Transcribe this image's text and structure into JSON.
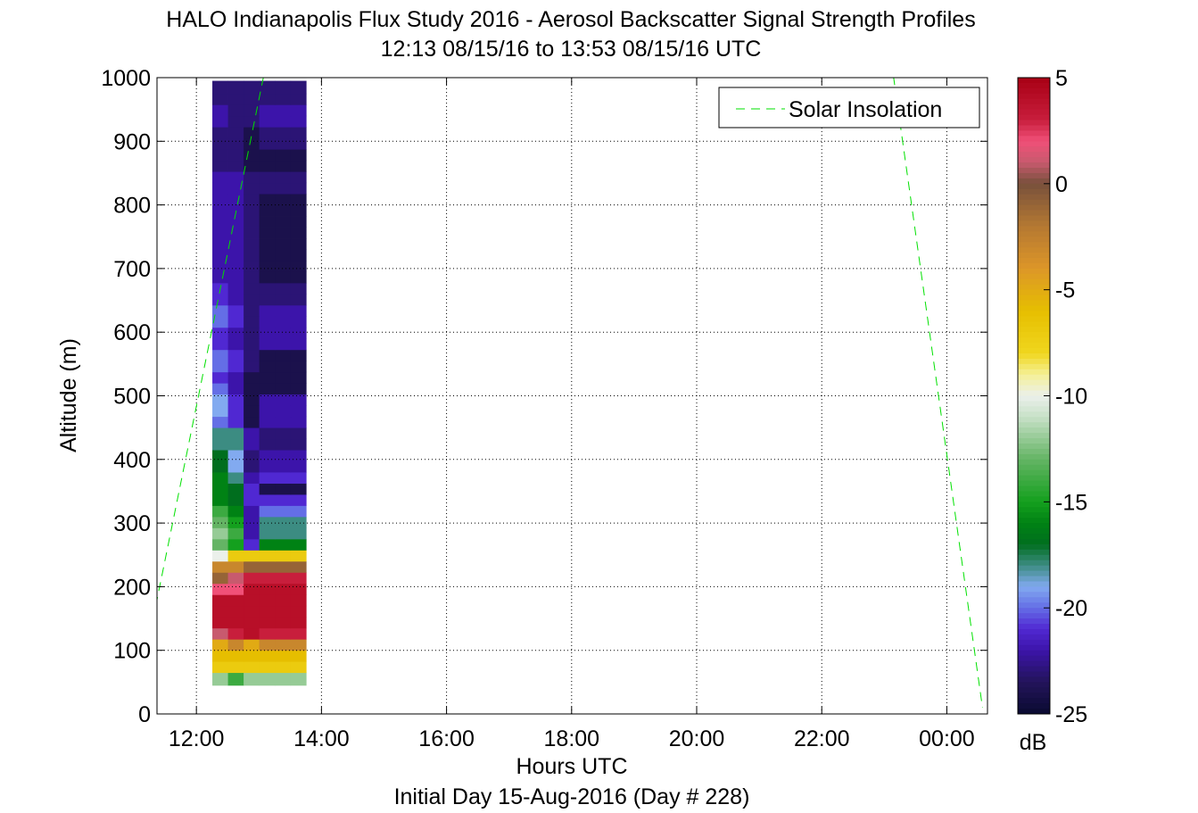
{
  "chart_data": {
    "type": "heatmap",
    "title": "HALO Indianapolis Flux Study 2016 - Aerosol Backscatter Signal Strength Profiles",
    "subtitle": "12:13 08/15/16 to 13:53 08/15/16  UTC",
    "xlabel": "Hours UTC",
    "xlabel2": "Initial Day 15-Aug-2016 (Day # 228)",
    "ylabel": "Altitude (m)",
    "colorbar_label": "dB",
    "x_ticks": [
      "12:00",
      "14:00",
      "16:00",
      "18:00",
      "20:00",
      "22:00",
      "00:00"
    ],
    "x_tick_hours": [
      12,
      14,
      16,
      18,
      20,
      22,
      24
    ],
    "xlim": [
      11.37,
      24.65
    ],
    "y_ticks": [
      "0",
      "100",
      "200",
      "300",
      "400",
      "500",
      "600",
      "700",
      "800",
      "900",
      "1000"
    ],
    "ylim": [
      0,
      1000
    ],
    "colorbar_ticks": [
      "5",
      "0",
      "-5",
      "-10",
      "-15",
      "-20",
      "-25"
    ],
    "clim": [
      -25,
      5
    ],
    "grid": true,
    "grid_style": "dotted",
    "legend": {
      "label": "Solar Insolation",
      "placement": "top-right",
      "color": "#00e000",
      "style": "dashed"
    },
    "solar_insolation_x_hours": [
      11.35,
      13.07,
      23.15,
      24.57
    ],
    "solar_insolation_altitude_m": [
      170,
      1000,
      1000,
      10
    ],
    "profile_times_hours": [
      12.38,
      12.63,
      12.88,
      13.13,
      13.38,
      13.63
    ],
    "altitude_bins_m": [
      55,
      75,
      90,
      110,
      125,
      145,
      160,
      180,
      195,
      215,
      230,
      250,
      265,
      285,
      300,
      320,
      335,
      355,
      370,
      390,
      405,
      425,
      440,
      460,
      475,
      495,
      510,
      530,
      545,
      565,
      580,
      600,
      615,
      635,
      650,
      670,
      685,
      705,
      720,
      740,
      755,
      775,
      790,
      810,
      825,
      845,
      860,
      880,
      895,
      915,
      930,
      950,
      965,
      985
    ],
    "values_db": [
      [
        -12,
        -14,
        -12,
        -12,
        -12,
        -12
      ],
      [
        -7,
        -7,
        -7,
        -7,
        -7,
        -7
      ],
      [
        -6,
        -6,
        -6,
        -6,
        -6,
        -6
      ],
      [
        -5,
        -3,
        -5,
        -3,
        -3,
        -3
      ],
      [
        1,
        3,
        4,
        3,
        3,
        3
      ],
      [
        4,
        4,
        4,
        4,
        4,
        4
      ],
      [
        4,
        4,
        4,
        4,
        4,
        4
      ],
      [
        4,
        4,
        4,
        4,
        4,
        4
      ],
      [
        2,
        2,
        4,
        4,
        4,
        4
      ],
      [
        -1,
        1,
        3,
        3,
        3,
        3
      ],
      [
        -3,
        -3,
        -1,
        -1,
        -1,
        -1
      ],
      [
        -10,
        -7,
        -7,
        -7,
        -7,
        -7
      ],
      [
        -13,
        -15,
        -21,
        -16,
        -16,
        -16
      ],
      [
        -12,
        -14,
        -22,
        -18,
        -18,
        -18
      ],
      [
        -13,
        -15,
        -22,
        -18,
        -18,
        -18
      ],
      [
        -14,
        -16,
        -22,
        -20,
        -20,
        -20
      ],
      [
        -16,
        -17,
        -21,
        -21,
        -21,
        -21
      ],
      [
        -16,
        -17,
        -21,
        -24,
        -24,
        -24
      ],
      [
        -16,
        -18,
        -22,
        -21,
        -21,
        -21
      ],
      [
        -17,
        -19,
        -23,
        -22,
        -22,
        -22
      ],
      [
        -17,
        -19,
        -23,
        -22,
        -22,
        -22
      ],
      [
        -18,
        -18,
        -22,
        -23,
        -23,
        -23
      ],
      [
        -18,
        -18,
        -22,
        -23,
        -23,
        -23
      ],
      [
        -20,
        -21,
        -24,
        -22,
        -22,
        -22
      ],
      [
        -19,
        -21,
        -24,
        -22,
        -22,
        -22
      ],
      [
        -19,
        -21,
        -24,
        -22,
        -22,
        -22
      ],
      [
        -20,
        -22,
        -24,
        -24,
        -24,
        -24
      ],
      [
        -21,
        -22,
        -24,
        -24,
        -24,
        -24
      ],
      [
        -20,
        -21,
        -23,
        -24,
        -24,
        -24
      ],
      [
        -20,
        -21,
        -23,
        -24,
        -24,
        -24
      ],
      [
        -21,
        -22,
        -23,
        -22,
        -22,
        -22
      ],
      [
        -21,
        -22,
        -23,
        -22,
        -22,
        -22
      ],
      [
        -20,
        -21,
        -23,
        -22,
        -22,
        -22
      ],
      [
        -20,
        -21,
        -23,
        -22,
        -22,
        -22
      ],
      [
        -21,
        -22,
        -23,
        -23,
        -23,
        -23
      ],
      [
        -21,
        -22,
        -23,
        -23,
        -23,
        -23
      ],
      [
        -22,
        -22,
        -23,
        -24,
        -24,
        -24
      ],
      [
        -22,
        -22,
        -23,
        -24,
        -24,
        -24
      ],
      [
        -22,
        -22,
        -23,
        -24,
        -24,
        -24
      ],
      [
        -22,
        -22,
        -23,
        -24,
        -24,
        -24
      ],
      [
        -22,
        -22,
        -23,
        -24,
        -24,
        -24
      ],
      [
        -22,
        -22,
        -23,
        -24,
        -24,
        -24
      ],
      [
        -22,
        -22,
        -23,
        -24,
        -24,
        -24
      ],
      [
        -22,
        -22,
        -23,
        -24,
        -24,
        -24
      ],
      [
        -22,
        -22,
        -23,
        -23,
        -23,
        -23
      ],
      [
        -22,
        -22,
        -23,
        -23,
        -23,
        -23
      ],
      [
        -23,
        -23,
        -24,
        -24,
        -24,
        -24
      ],
      [
        -23,
        -23,
        -24,
        -24,
        -24,
        -24
      ],
      [
        -23,
        -23,
        -24,
        -23,
        -23,
        -23
      ],
      [
        -23,
        -23,
        -24,
        -23,
        -23,
        -23
      ],
      [
        -22,
        -23,
        -23,
        -22,
        -22,
        -22
      ],
      [
        -22,
        -23,
        -23,
        -22,
        -22,
        -22
      ],
      [
        -23,
        -23,
        -23,
        -23,
        -23,
        -23
      ],
      [
        -23,
        -23,
        -23,
        -23,
        -23,
        -23
      ]
    ]
  }
}
